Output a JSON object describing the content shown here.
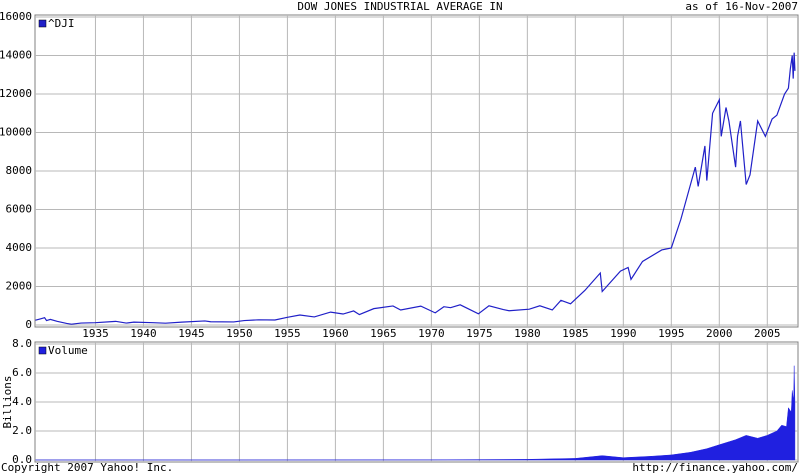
{
  "chart_data": [
    {
      "type": "line",
      "title": "DOW JONES INDUSTRIAL AVERAGE IN",
      "subtitle": "as of 16-Nov-2007",
      "x": [
        1928.75,
        1929.2,
        1929.7,
        1929.9,
        1930.3,
        1931,
        1932,
        1932.5,
        1933.5,
        1935,
        1937.1,
        1938.2,
        1939,
        1941,
        1942.3,
        1944,
        1946.4,
        1947,
        1949.4,
        1950.5,
        1952,
        1953.7,
        1955,
        1956.3,
        1957.8,
        1959.5,
        1960.8,
        1961.9,
        1962.5,
        1964,
        1966,
        1966.8,
        1968.9,
        1970.4,
        1971.3,
        1972,
        1973,
        1974.9,
        1976,
        1977.5,
        1978.1,
        1980.2,
        1981.3,
        1982.6,
        1983.5,
        1984.5,
        1986,
        1987.6,
        1987.8,
        1989.7,
        1990.5,
        1990.8,
        1992,
        1994,
        1995,
        1996,
        1997.5,
        1997.8,
        1998.5,
        1998.7,
        1999.3,
        2000,
        2000.2,
        2000.7,
        2001,
        2001.7,
        2001.9,
        2002.2,
        2002.8,
        2003.2,
        2004,
        2004.8,
        2005.5,
        2006,
        2006.8,
        2007.2,
        2007.4,
        2007.6,
        2007.7,
        2007.8,
        2007.88
      ],
      "series": [
        {
          "name": "^DJI",
          "color": "#2020c8",
          "values": [
            250,
            310,
            380,
            230,
            290,
            190,
            80,
            42,
            100,
            120,
            190,
            100,
            150,
            120,
            95,
            150,
            210,
            170,
            160,
            230,
            270,
            260,
            400,
            520,
            420,
            670,
            570,
            730,
            540,
            850,
            990,
            780,
            980,
            630,
            950,
            900,
            1050,
            580,
            1000,
            800,
            740,
            820,
            1000,
            780,
            1280,
            1100,
            1800,
            2700,
            1740,
            2800,
            2990,
            2370,
            3300,
            3900,
            4000,
            5500,
            8200,
            7200,
            9300,
            7500,
            11000,
            11700,
            9800,
            11300,
            10600,
            8200,
            9800,
            10600,
            7300,
            7800,
            10600,
            9800,
            10700,
            10900,
            12000,
            12300,
            13300,
            14000,
            12800,
            14150,
            13200
          ]
        }
      ],
      "xlim": [
        1928.7,
        2008.2
      ],
      "xticks": [
        1935,
        1940,
        1945,
        1950,
        1955,
        1960,
        1965,
        1970,
        1975,
        1980,
        1985,
        1990,
        1995,
        2000,
        2005
      ],
      "ylim": [
        0,
        16000
      ],
      "yticks": [
        0,
        2000,
        4000,
        6000,
        8000,
        10000,
        12000,
        14000,
        16000
      ],
      "grid": true,
      "x_tick_labels": true
    },
    {
      "type": "area",
      "y_label": "Billions",
      "x": [
        1928.75,
        1950,
        1970,
        1980,
        1985,
        1987.8,
        1990,
        1993,
        1995,
        1997,
        1998.7,
        2000,
        2001.7,
        2002.8,
        2004,
        2005,
        2006,
        2006.5,
        2007,
        2007.2,
        2007.5,
        2007.6,
        2007.75,
        2007.8,
        2007.88
      ],
      "series": [
        {
          "name": "Volume",
          "color": "#2020e0",
          "values": [
            0.004,
            0.002,
            0.012,
            0.045,
            0.11,
            0.3,
            0.16,
            0.26,
            0.35,
            0.53,
            0.78,
            1.05,
            1.4,
            1.7,
            1.5,
            1.7,
            2.0,
            2.4,
            2.3,
            3.6,
            3.3,
            4.8,
            4.0,
            6.5,
            3.9
          ]
        }
      ],
      "xlim": [
        1928.7,
        2008.2
      ],
      "xticks": [
        1935,
        1940,
        1945,
        1950,
        1955,
        1960,
        1965,
        1970,
        1975,
        1980,
        1985,
        1990,
        1995,
        2000,
        2005
      ],
      "ylim": [
        0,
        8
      ],
      "yticks": [
        {
          "value": 0,
          "label": "0.0"
        },
        {
          "value": 2,
          "label": "2.0"
        },
        {
          "value": 4,
          "label": "4.0"
        },
        {
          "value": 6,
          "label": "6.0"
        },
        {
          "value": 8,
          "label": "8.0"
        }
      ],
      "grid": true,
      "x_tick_labels": false
    }
  ],
  "footer": {
    "copyright": "Copyright 2007 Yahoo! Inc.",
    "url": "http://finance.yahoo.com/"
  }
}
